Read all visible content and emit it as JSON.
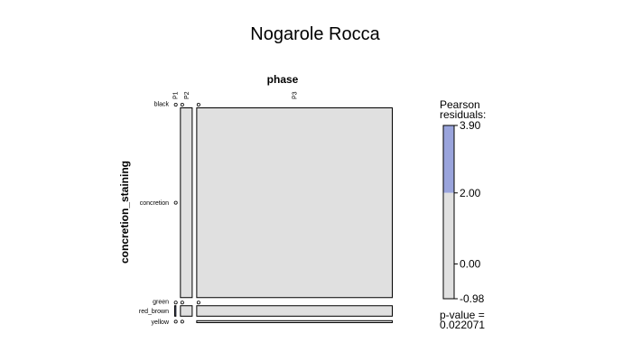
{
  "chart_data": {
    "type": "mosaic",
    "title": "Nogarole Rocca",
    "xlabel": "phase",
    "ylabel": "concretion_staining",
    "x_categories": [
      "P1",
      "P2",
      "P3"
    ],
    "y_categories": [
      "black",
      "concretion",
      "green",
      "red_brown",
      "yellow"
    ],
    "column_proportions": [
      0.01,
      0.06,
      0.93
    ],
    "cells": [
      [
        0.0,
        0.0,
        0.0
      ],
      [
        0.0,
        0.94,
        0.94
      ],
      [
        0.0,
        0.0,
        0.0
      ],
      [
        1.0,
        0.06,
        0.045
      ],
      [
        0.0,
        0.0,
        0.015
      ]
    ],
    "residuals": [
      [
        0.0,
        0.0,
        0.0
      ],
      [
        0.0,
        0.0,
        0.0
      ],
      [
        0.0,
        0.0,
        0.0
      ],
      [
        3.9,
        0.0,
        0.0
      ],
      [
        0.0,
        0.0,
        0.0
      ]
    ],
    "legend": {
      "title_lines": [
        "Pearson",
        "residuals:"
      ],
      "ticks": [
        "3.90",
        "2.00",
        "0.00",
        "-0.98"
      ],
      "tick_values": [
        3.9,
        2.0,
        0.0,
        -0.98
      ],
      "min": -0.98,
      "max": 3.9,
      "threshold": 2.0,
      "pvalue_label": "p-value =",
      "pvalue": "0.022071"
    },
    "colors": {
      "neutral": "#e0e0e0",
      "positive": "#9aa4dc",
      "border": "#000000"
    }
  }
}
